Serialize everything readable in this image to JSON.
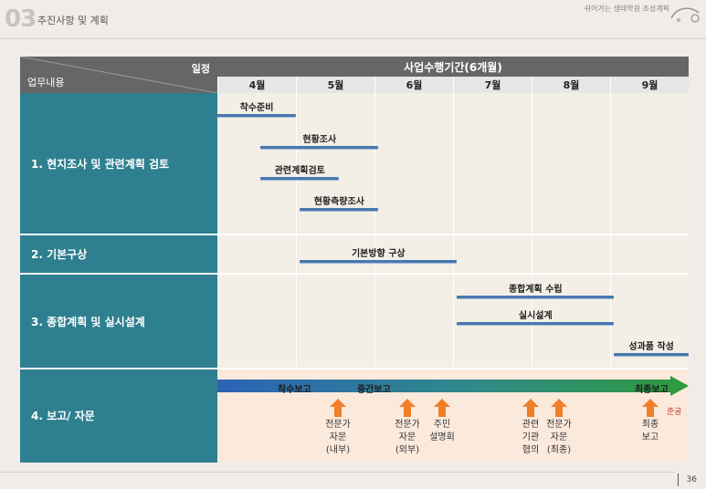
{
  "header": {
    "section_number": "03",
    "section_title": "추진사항 및 계획",
    "brand": "쉬어가는 생태학원 조성계획"
  },
  "table": {
    "corner_top": "일정",
    "corner_bottom": "업무내용",
    "period_title": "사업수행기간(6개월)",
    "months": [
      "4월",
      "5월",
      "6월",
      "7월",
      "8월",
      "9월"
    ]
  },
  "rows": [
    {
      "label": "1. 현지조사 및 관련계획 검토"
    },
    {
      "label": "2. 기본구상"
    },
    {
      "label": "3. 종합계획 및 실시설계"
    },
    {
      "label": "4. 보고/ 자문"
    }
  ],
  "tasks": [
    {
      "label": "착수준비",
      "start_month": 0.0,
      "end_month": 1.0
    },
    {
      "label": "현황조사",
      "start_month": 0.55,
      "end_month": 2.05
    },
    {
      "label": "관련계획검토",
      "start_month": 0.55,
      "end_month": 1.55
    },
    {
      "label": "현황측량조사",
      "start_month": 1.05,
      "end_month": 2.05
    },
    {
      "label": "기본방향 구상",
      "start_month": 1.05,
      "end_month": 3.05
    },
    {
      "label": "종합계획 수립",
      "start_month": 3.05,
      "end_month": 5.05
    },
    {
      "label": "실시설계",
      "start_month": 3.05,
      "end_month": 5.05
    },
    {
      "label": "성과품 작성",
      "start_month": 5.05,
      "end_month": 6.0
    }
  ],
  "milestones": [
    "착수보고",
    "중간보고",
    "최종보고"
  ],
  "completion": "준공",
  "events": [
    {
      "lines": [
        "전문가",
        "자문",
        "(내부)"
      ]
    },
    {
      "lines": [
        "전문가",
        "자문",
        "(외부)"
      ]
    },
    {
      "lines": [
        "주민",
        "설명회"
      ]
    },
    {
      "lines": [
        "관련",
        "기관",
        "협의"
      ]
    },
    {
      "lines": [
        "전문가",
        "자문",
        "(최종)"
      ]
    },
    {
      "lines": [
        "최종",
        "보고"
      ]
    }
  ],
  "colors": {
    "header_dark": "#666666",
    "row_label": "#2e7f8f",
    "task_bar": "#4a78b0",
    "arrow": "#f07f2a",
    "completion": "#c0392b"
  },
  "page_number": "36"
}
